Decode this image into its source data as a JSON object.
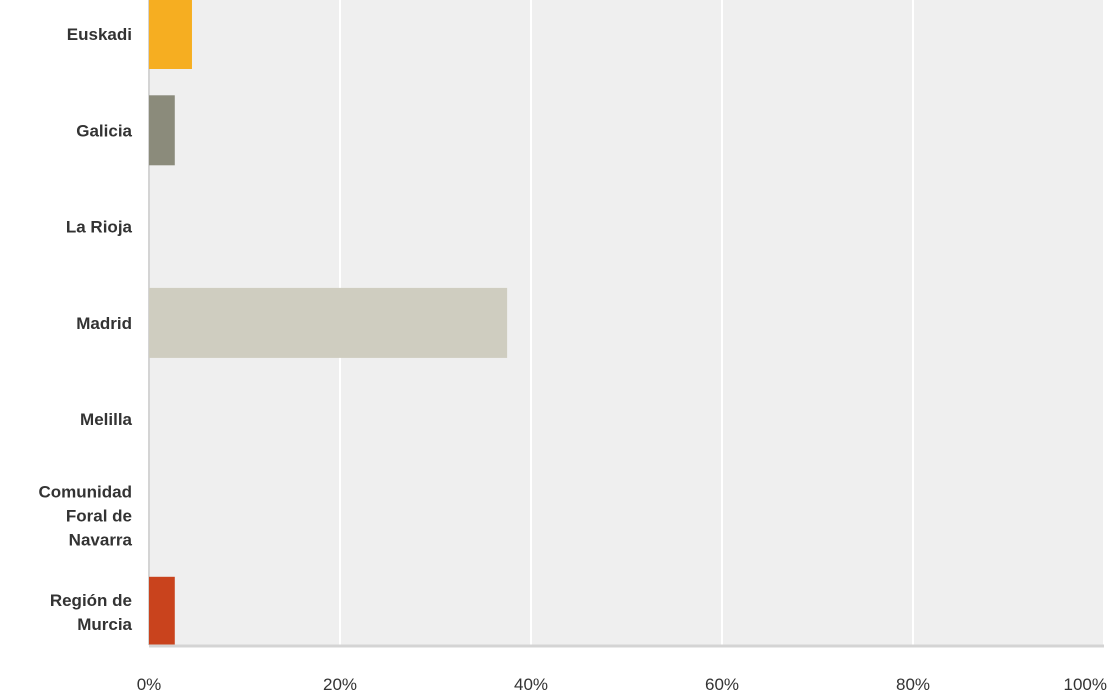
{
  "chart_data": {
    "type": "bar",
    "orientation": "horizontal",
    "categories": [
      [
        "Euskadi"
      ],
      [
        "Galicia"
      ],
      [
        "La Rioja"
      ],
      [
        "Madrid"
      ],
      [
        "Melilla"
      ],
      [
        "Comunidad",
        "Foral de",
        "Navarra"
      ],
      [
        "Región de",
        "Murcia"
      ]
    ],
    "values": [
      4.5,
      2.7,
      0,
      37.5,
      0,
      0,
      2.7
    ],
    "colors": [
      "#f6ae21",
      "#8b8b7b",
      "#b0b0b0",
      "#cfcdc0",
      "#b0b0b0",
      "#b0b0b0",
      "#c9431d"
    ],
    "xlim": [
      0,
      100
    ],
    "xticks": [
      0,
      20,
      40,
      60,
      80,
      100
    ],
    "xtick_labels": [
      "0%",
      "20%",
      "40%",
      "60%",
      "80%",
      "100%"
    ],
    "grid": true,
    "plot_background": "#efefef",
    "gridline_color": "#ffffff",
    "axis_color": "#d4d4d4"
  }
}
